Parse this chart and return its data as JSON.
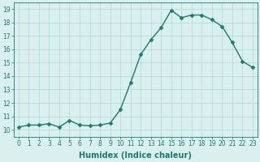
{
  "x": [
    0,
    1,
    2,
    3,
    4,
    5,
    6,
    7,
    8,
    9,
    10,
    11,
    12,
    13,
    14,
    15,
    16,
    17,
    18,
    19,
    20,
    21,
    22,
    23
  ],
  "y": [
    10.2,
    10.35,
    10.35,
    10.45,
    10.2,
    10.7,
    10.35,
    10.3,
    10.35,
    10.5,
    11.5,
    13.5,
    15.6,
    16.7,
    17.6,
    18.9,
    18.35,
    18.55,
    18.55,
    18.2,
    17.7,
    16.5,
    15.1,
    14.65
  ],
  "line_color": "#1a7a6e",
  "marker": "D",
  "marker_size": 2.5,
  "line_width": 1.0,
  "bg_color": "#d9f0ef",
  "grid_color": "#b0d8d4",
  "xlabel": "Humidex (Indice chaleur)",
  "xlim": [
    -0.5,
    23.5
  ],
  "ylim": [
    9.5,
    19.5
  ],
  "yticks": [
    10,
    11,
    12,
    13,
    14,
    15,
    16,
    17,
    18,
    19
  ],
  "xticks": [
    0,
    1,
    2,
    3,
    4,
    5,
    6,
    7,
    8,
    9,
    10,
    11,
    12,
    13,
    14,
    15,
    16,
    17,
    18,
    19,
    20,
    21,
    22,
    23
  ],
  "tick_color": "#1a7a6e",
  "axis_color": "#1a7a6e",
  "label_fontsize": 7,
  "tick_fontsize": 5.5
}
